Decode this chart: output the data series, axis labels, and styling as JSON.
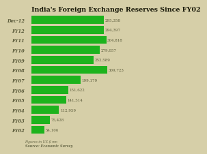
{
  "title": "India's Foreign Exchange Reserves Since FY02",
  "categories": [
    "Dec-12",
    "FY12",
    "FY11",
    "FY10",
    "FY09",
    "FY08",
    "FY07",
    "FY06",
    "FY05",
    "FY04",
    "FY03",
    "FY02"
  ],
  "values": [
    295358,
    294397,
    304818,
    279057,
    252589,
    309723,
    199179,
    151622,
    141514,
    112959,
    75428,
    54106
  ],
  "bar_color": "#1db31d",
  "label_color": "#5a5a3a",
  "title_color": "#1a1a0a",
  "bg_color": "#d6cfa8",
  "footnote": "Figures in US $ mn",
  "source": "Source: Economic Survey",
  "title_fontsize": 6.8,
  "label_fontsize": 4.8,
  "value_fontsize": 4.0
}
